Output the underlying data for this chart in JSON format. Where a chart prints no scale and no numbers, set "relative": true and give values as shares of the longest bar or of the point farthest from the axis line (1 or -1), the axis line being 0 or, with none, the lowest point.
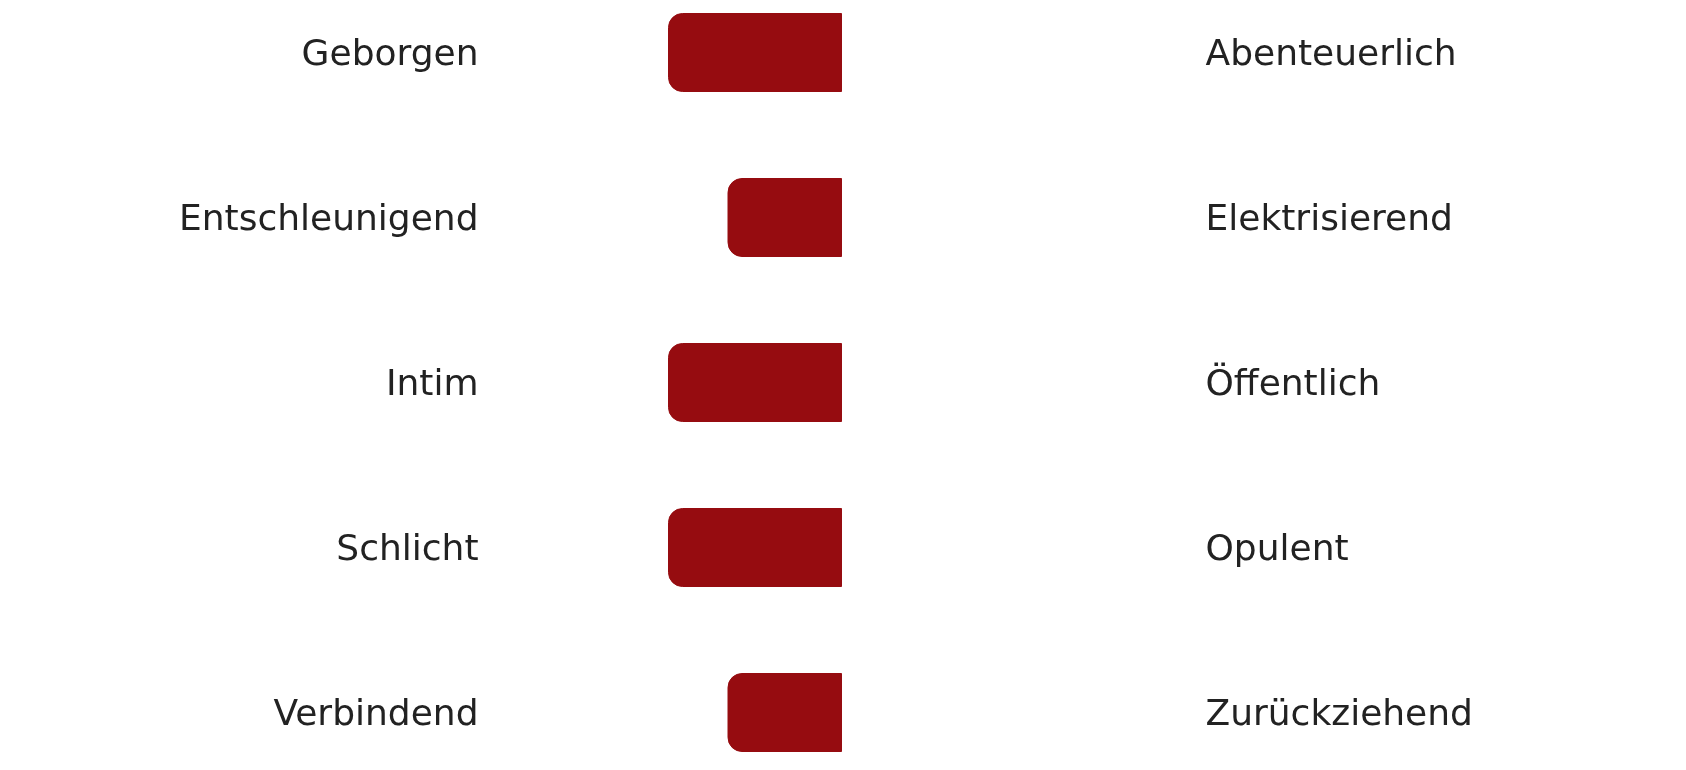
{
  "chart_data": {
    "type": "bar",
    "orientation": "horizontal",
    "relative": true,
    "categories": [
      "Geborgen",
      "Entschleunigend",
      "Intim",
      "Schlicht",
      "Verbindend"
    ],
    "values": [
      -1,
      -0.66,
      -1,
      -1,
      -0.66
    ],
    "color": "#960c10",
    "annotations": [
      "Abenteuerlich",
      "Elektrisierend",
      "Öffentlich",
      "Opulent",
      "Zurückziehend"
    ]
  }
}
